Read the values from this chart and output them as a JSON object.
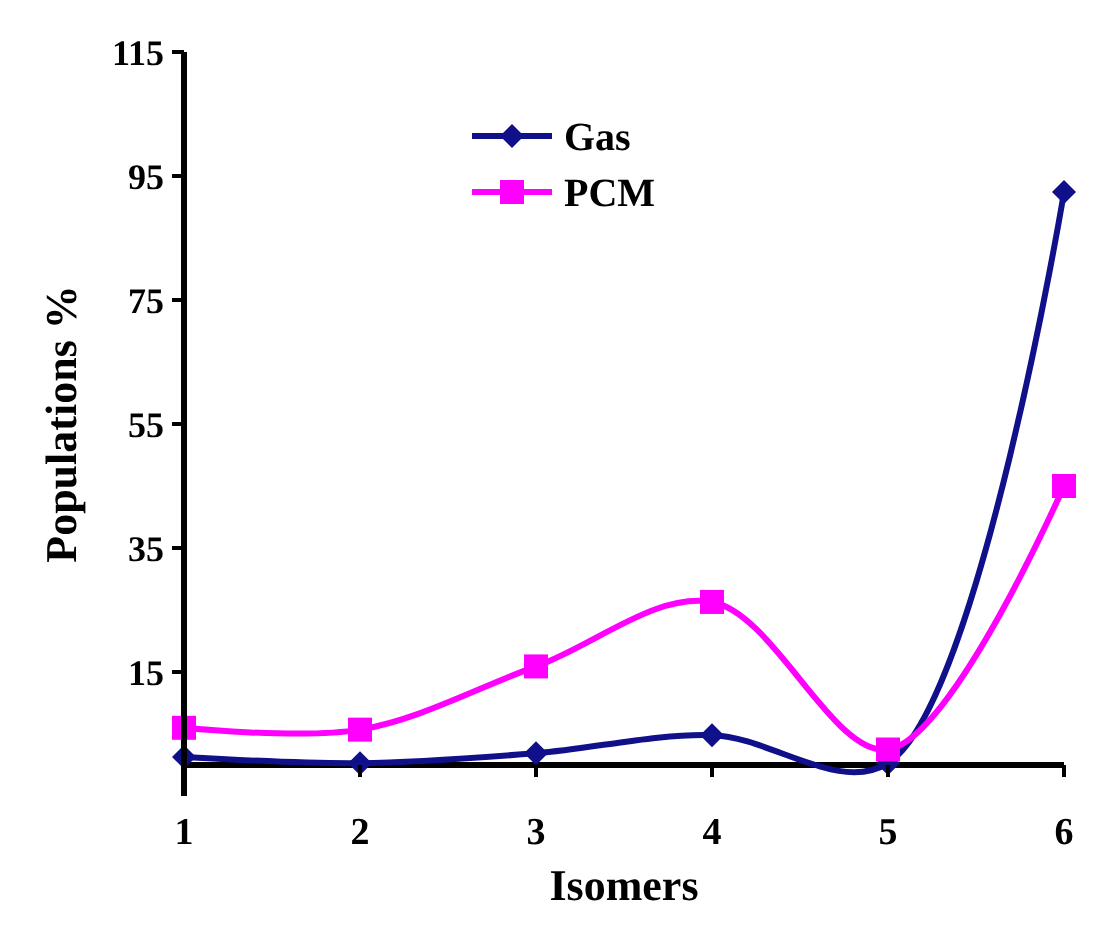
{
  "chart_data": {
    "type": "line",
    "xlabel": "Isomers",
    "ylabel": "Populations %",
    "x": [
      1,
      2,
      3,
      4,
      5,
      6
    ],
    "xlim": [
      1,
      6
    ],
    "xticks": [
      1,
      2,
      3,
      4,
      5,
      6
    ],
    "ylim": [
      -5,
      115
    ],
    "yticks": [
      15,
      35,
      55,
      75,
      95,
      115
    ],
    "grid": false,
    "legend": "top",
    "line_style": "solid",
    "series": [
      {
        "name": "Gas",
        "color": "#10108a",
        "marker": "diamond",
        "values": [
          1.3,
          0.3,
          1.9,
          4.8,
          0.3,
          92.4
        ]
      },
      {
        "name": "PCM",
        "color": "#ff00ff",
        "marker": "square",
        "values": [
          6,
          5.7,
          15.9,
          26.3,
          2.5,
          45
        ]
      }
    ]
  }
}
